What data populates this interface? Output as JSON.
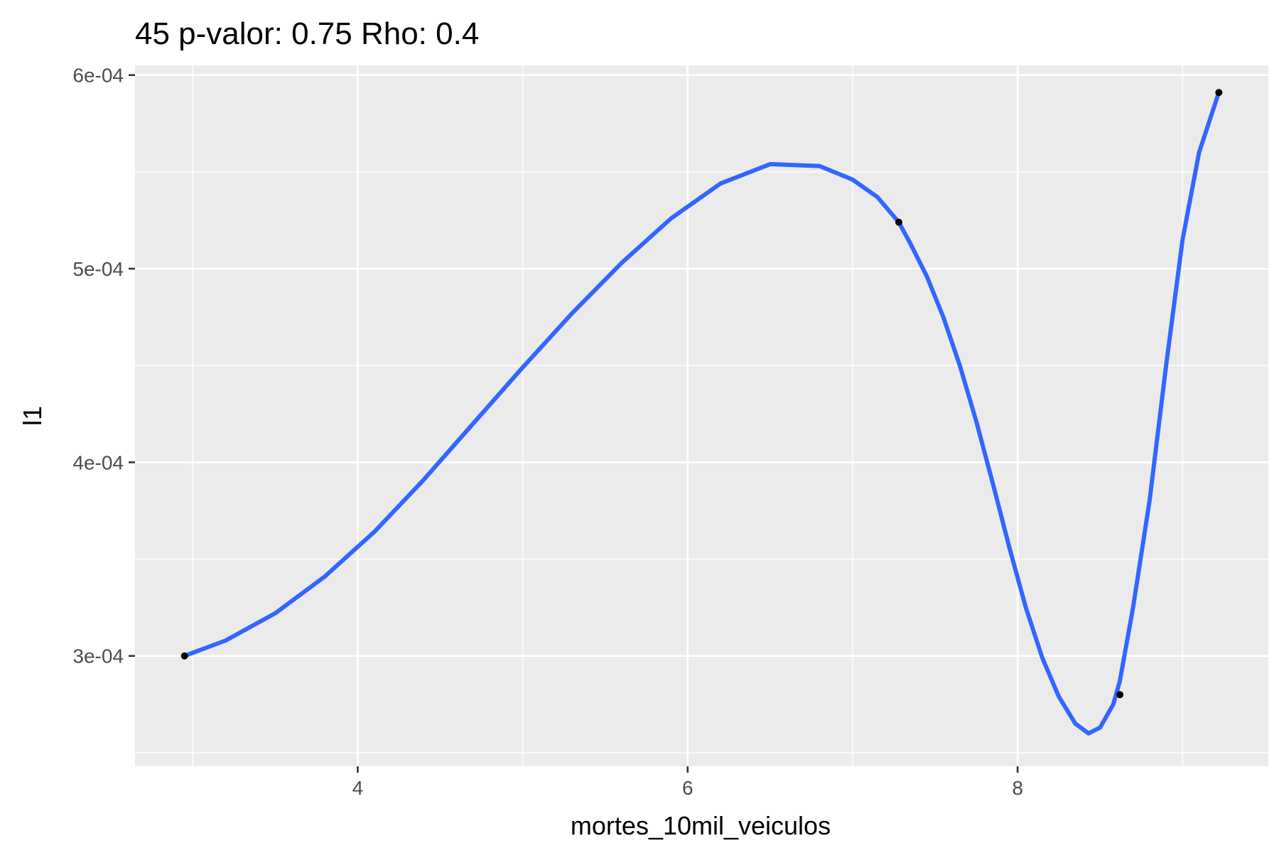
{
  "chart_data": {
    "type": "scatter",
    "title": "45 p-valor: 0.75 Rho: 0.4",
    "xlabel": "mortes_10mil_veiculos",
    "ylabel": "l1",
    "xlim": [
      2.65,
      9.52
    ],
    "ylim": [
      0.000243,
      0.000605
    ],
    "x_ticks": [
      4,
      6,
      8
    ],
    "x_tick_labels": [
      "4",
      "6",
      "8"
    ],
    "x_minor_ticks": [
      3,
      5,
      7,
      9
    ],
    "y_ticks": [
      0.0003,
      0.0004,
      0.0005,
      0.0006
    ],
    "y_tick_labels": [
      "3e-04",
      "4e-04",
      "5e-04",
      "6e-04"
    ],
    "y_minor_ticks": [
      0.00025,
      0.00035,
      0.00045,
      0.00055
    ],
    "grid": true,
    "panel_background": "#ebebeb",
    "points": {
      "color": "#000000",
      "x": [
        2.95,
        7.28,
        8.62,
        9.22
      ],
      "y": [
        0.0003,
        0.000524,
        0.00028,
        0.000591
      ]
    },
    "smooth_line": {
      "color": "#3366ff",
      "x": [
        2.95,
        3.2,
        3.5,
        3.8,
        4.1,
        4.4,
        4.7,
        5.0,
        5.3,
        5.6,
        5.9,
        6.2,
        6.5,
        6.8,
        7.0,
        7.15,
        7.28,
        7.35,
        7.45,
        7.55,
        7.65,
        7.75,
        7.85,
        7.95,
        8.05,
        8.15,
        8.25,
        8.35,
        8.43,
        8.5,
        8.58,
        8.62,
        8.7,
        8.8,
        8.9,
        9.0,
        9.1,
        9.22
      ],
      "y": [
        0.0003,
        0.000308,
        0.000322,
        0.000341,
        0.000364,
        0.000391,
        0.00042,
        0.000449,
        0.000477,
        0.000503,
        0.000526,
        0.000544,
        0.000554,
        0.000553,
        0.000546,
        0.000537,
        0.000524,
        0.000513,
        0.000496,
        0.000475,
        0.00045,
        0.000421,
        0.000389,
        0.000356,
        0.000325,
        0.000299,
        0.000279,
        0.000265,
        0.00026,
        0.000263,
        0.000275,
        0.000287,
        0.000325,
        0.00038,
        0.00045,
        0.000515,
        0.00056,
        0.000591
      ]
    }
  }
}
